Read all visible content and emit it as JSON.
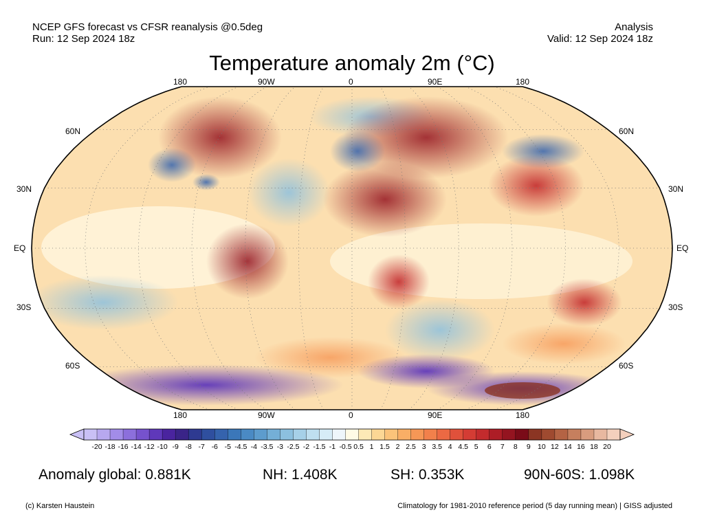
{
  "header": {
    "line1_left": "NCEP GFS forecast vs CFSR reanalysis @0.5deg",
    "line2_left": "Run: 12 Sep 2024 18z",
    "line1_right": "Analysis",
    "line2_right": "Valid: 12 Sep 2024 18z"
  },
  "title": "Temperature anomaly 2m (°C)",
  "map": {
    "projection": "Robinson",
    "top_lon_labels": [
      "180",
      "90W",
      "0",
      "90E",
      "180"
    ],
    "bottom_lon_labels": [
      "180",
      "90W",
      "0",
      "90E",
      "180"
    ],
    "left_lat_labels": [
      "60N",
      "30N",
      "EQ",
      "30S",
      "60S"
    ],
    "right_lat_labels": [
      "60N",
      "30N",
      "EQ",
      "30S",
      "60S"
    ]
  },
  "colorbar": {
    "labels": [
      "-20",
      "-18",
      "-16",
      "-14",
      "-12",
      "-10",
      "-9",
      "-8",
      "-7",
      "-6",
      "-5",
      "-4.5",
      "-4",
      "-3.5",
      "-3",
      "-2.5",
      "-2",
      "-1.5",
      "-1",
      "-0.5",
      "0.5",
      "1",
      "1.5",
      "2",
      "2.5",
      "3",
      "3.5",
      "4",
      "4.5",
      "5",
      "6",
      "7",
      "8",
      "9",
      "10",
      "12",
      "14",
      "16",
      "18",
      "20"
    ],
    "colors": [
      "#c9c0f5",
      "#b7a8ef",
      "#a28ce8",
      "#8c6fdc",
      "#7652cd",
      "#5f38ba",
      "#4a249f",
      "#3a2488",
      "#2e3a91",
      "#2f4f9f",
      "#3563ad",
      "#3b77b9",
      "#4a8ac4",
      "#5d9ccd",
      "#74afd7",
      "#8cc0df",
      "#a6d0e8",
      "#bfdff0",
      "#d6ecf7",
      "#eef6fb",
      "#fffbe6",
      "#fde9b6",
      "#fcd795",
      "#fbc37a",
      "#f9ae66",
      "#f69756",
      "#f2804b",
      "#ec6943",
      "#e0513b",
      "#d43c34",
      "#c32b2d",
      "#ad1d26",
      "#941420",
      "#7a0b18",
      "#8b3523",
      "#9f4a30",
      "#b46344",
      "#c67f5e",
      "#d89c7e",
      "#e8b8a0",
      "#f4d0bd"
    ]
  },
  "stats": {
    "global": "Anomaly global: 0.881K",
    "nh": "NH: 1.408K",
    "sh": "SH: 0.353K",
    "arctic": "90N-60S: 1.098K"
  },
  "footer": {
    "left": "(c) Karsten Haustein",
    "right": "Climatology for 1981-2010 reference period (5 day running mean) | GISS adjusted"
  }
}
